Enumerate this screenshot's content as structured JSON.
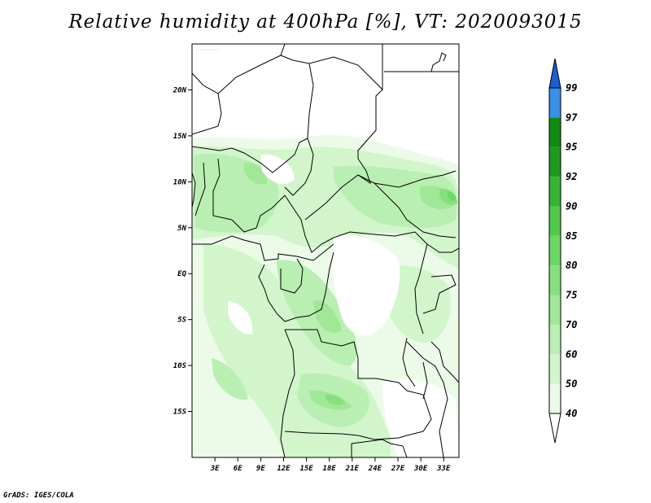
{
  "title": "Relative humidity at 400hPa [%], VT: 2020093015",
  "credit": "GrADS: IGES/COLA",
  "map": {
    "lon_range": [
      0,
      35
    ],
    "lat_range": [
      -20,
      25
    ],
    "lat_ticks": [
      {
        "value": 20,
        "label": "20N"
      },
      {
        "value": 15,
        "label": "15N"
      },
      {
        "value": 10,
        "label": "10N"
      },
      {
        "value": 5,
        "label": "5N"
      },
      {
        "value": 0,
        "label": "EQ"
      },
      {
        "value": -5,
        "label": "5S"
      },
      {
        "value": -10,
        "label": "10S"
      },
      {
        "value": -15,
        "label": "15S"
      }
    ],
    "lon_ticks": [
      {
        "value": 3,
        "label": "3E"
      },
      {
        "value": 6,
        "label": "6E"
      },
      {
        "value": 9,
        "label": "9E"
      },
      {
        "value": 12,
        "label": "12E"
      },
      {
        "value": 15,
        "label": "15E"
      },
      {
        "value": 18,
        "label": "18E"
      },
      {
        "value": 21,
        "label": "21E"
      },
      {
        "value": 24,
        "label": "24E"
      },
      {
        "value": 27,
        "label": "27E"
      },
      {
        "value": 30,
        "label": "30E"
      },
      {
        "value": 33,
        "label": "33E"
      }
    ]
  },
  "colorbar": {
    "levels": [
      {
        "label": "40",
        "color": "#ebfbe8"
      },
      {
        "label": "50",
        "color": "#d2f5cc"
      },
      {
        "label": "60",
        "color": "#b9efb2"
      },
      {
        "label": "70",
        "color": "#a0e898"
      },
      {
        "label": "75",
        "color": "#86e07f"
      },
      {
        "label": "80",
        "color": "#6dd766"
      },
      {
        "label": "85",
        "color": "#52c94c"
      },
      {
        "label": "90",
        "color": "#36b434"
      },
      {
        "label": "92",
        "color": "#1f9a1f"
      },
      {
        "label": "95",
        "color": "#128a12"
      },
      {
        "label": "97",
        "color": "#3a8fe6"
      },
      {
        "label": "99",
        "color": "#1e6fdc"
      }
    ],
    "over_color": "#1a5fd0",
    "under_color": "#ffffff"
  },
  "field_colors": {
    "c40": "#ebfbe8",
    "c50": "#d2f5cc",
    "c60": "#b9efb2",
    "c70": "#a0e898",
    "c75": "#86e07f",
    "c80": "#6dd766"
  }
}
